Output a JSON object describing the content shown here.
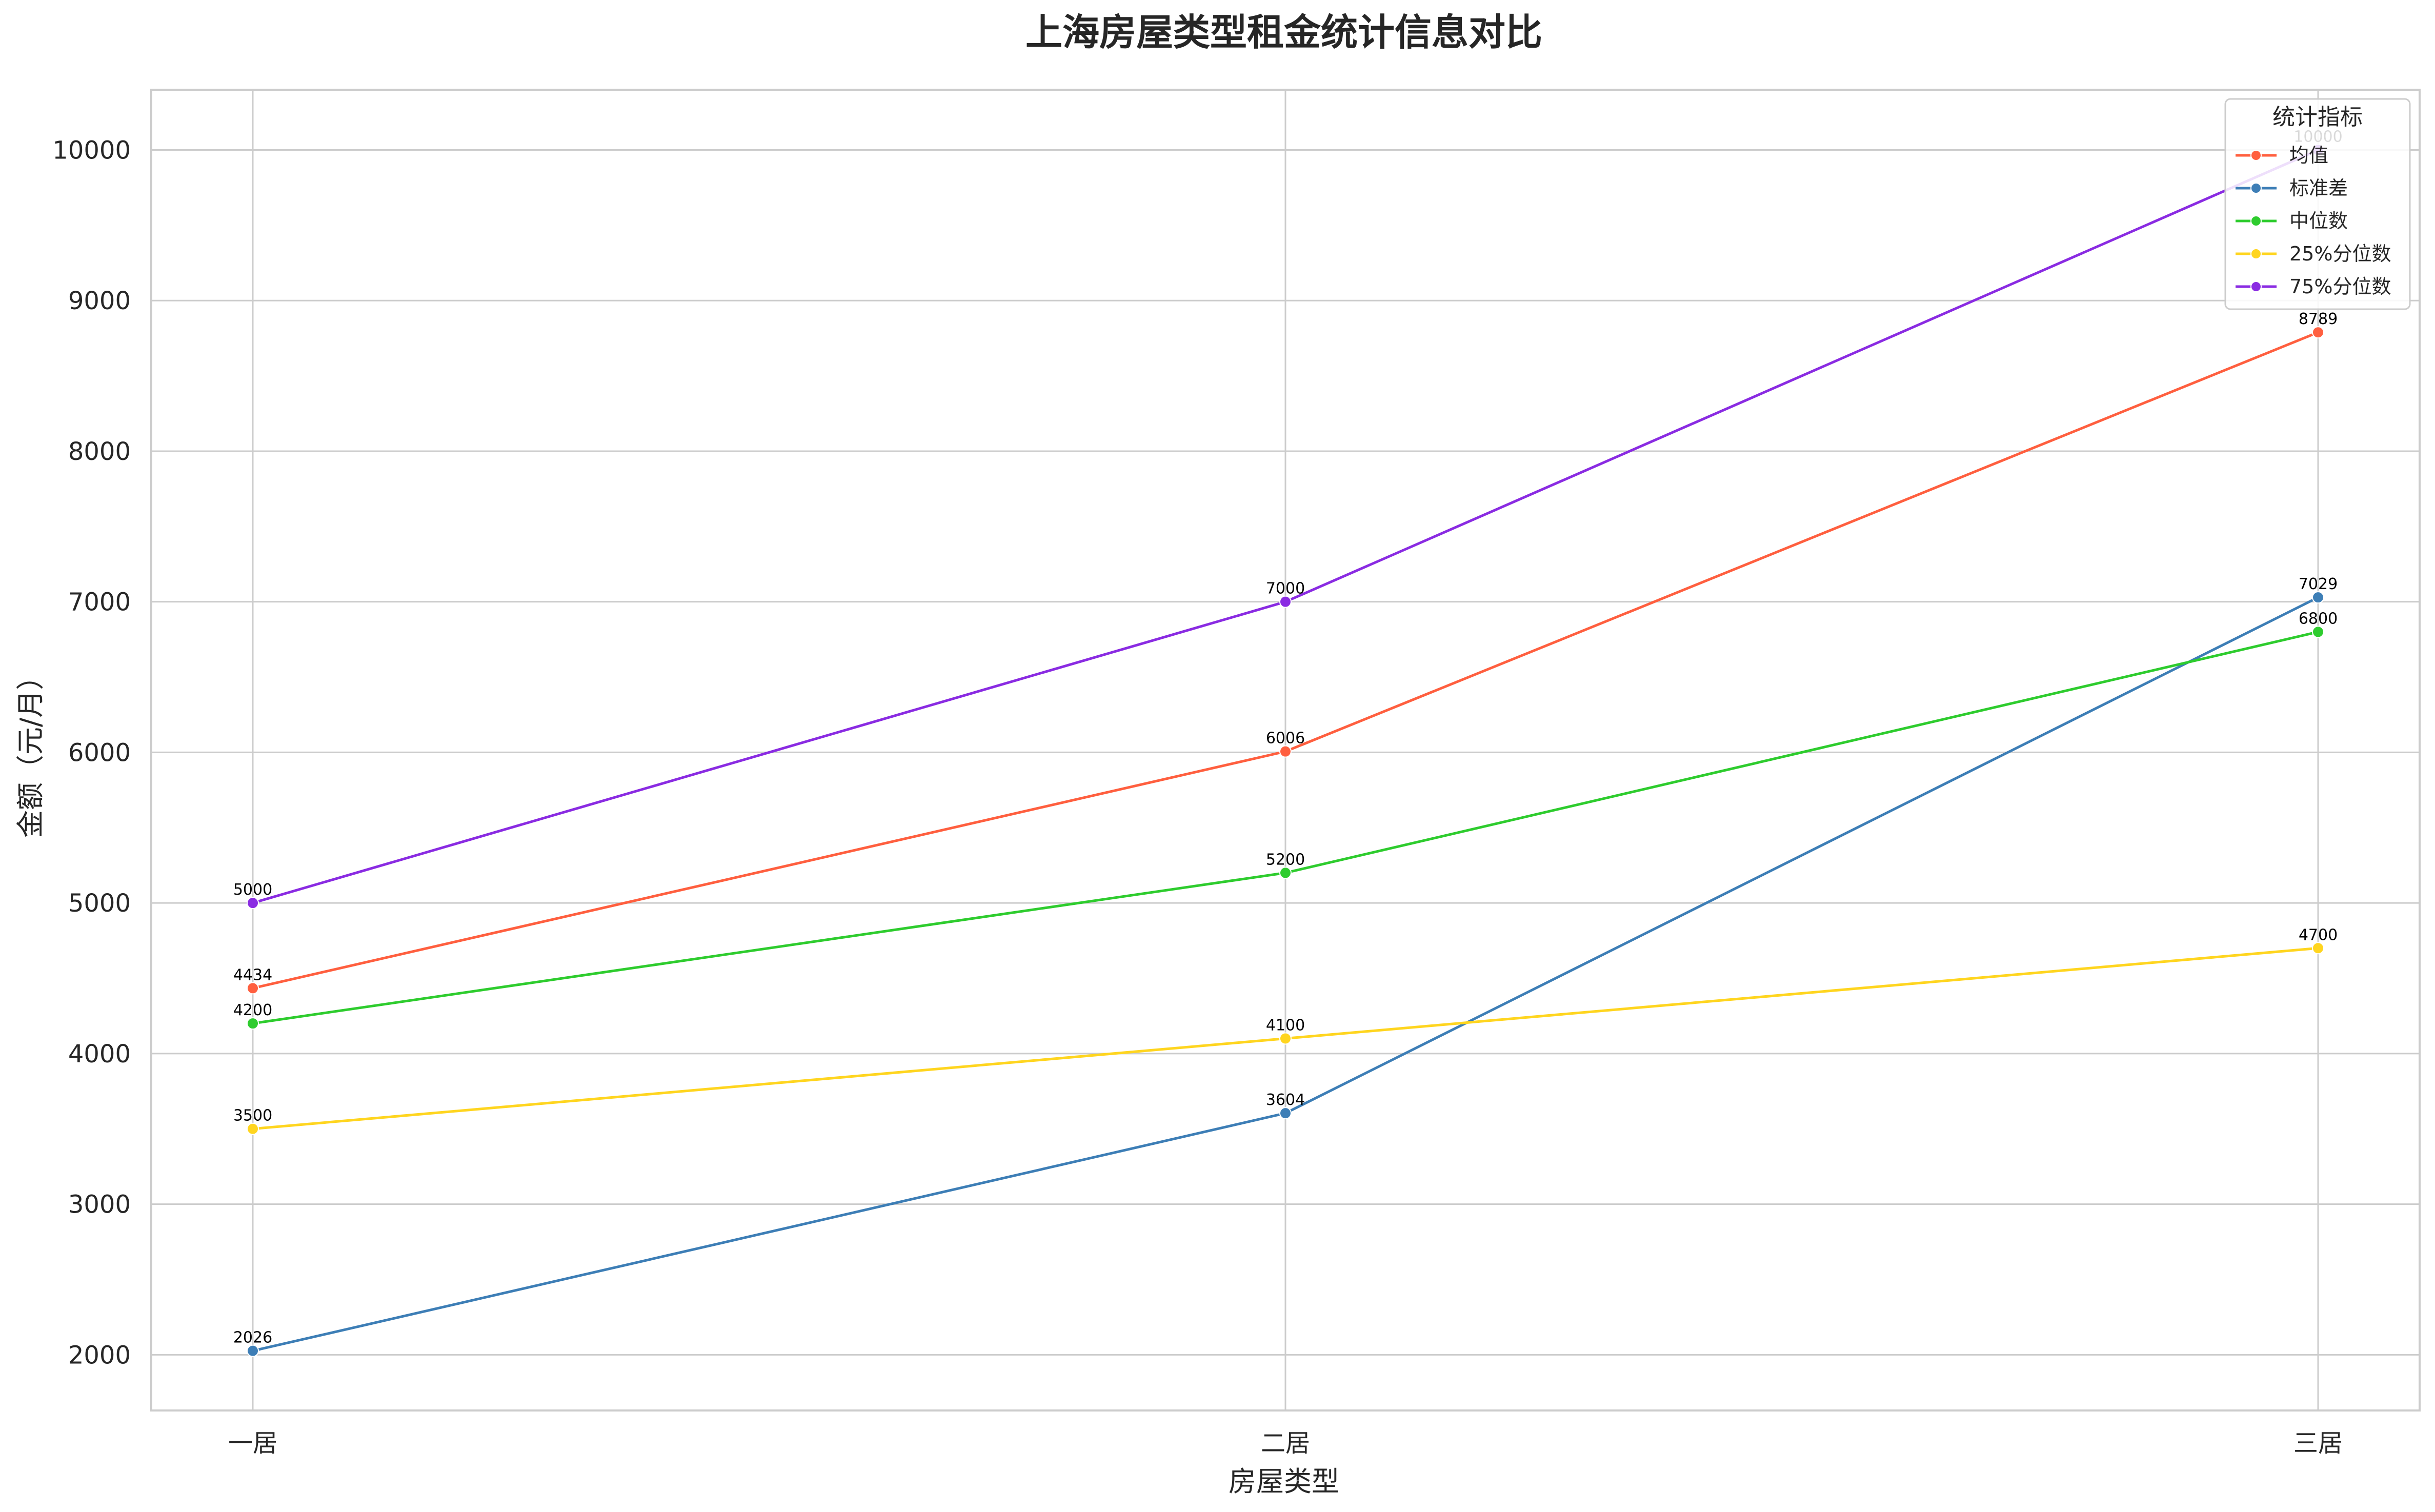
{
  "chart_data": {
    "type": "line",
    "title": "上海房屋类型租金统计信息对比",
    "xlabel": "房屋类型",
    "ylabel": "金额（元/月）",
    "categories": [
      "一居",
      "二居",
      "三居"
    ],
    "ylim": [
      1630,
      10400
    ],
    "yticks": [
      2000,
      3000,
      4000,
      5000,
      6000,
      7000,
      8000,
      9000,
      10000
    ],
    "ytick_labels": [
      "2000",
      "3000",
      "4000",
      "5000",
      "6000",
      "7000",
      "8000",
      "9000",
      "10000"
    ],
    "grid": true,
    "legend": {
      "title": "统计指标",
      "placement": "top-right"
    },
    "series": [
      {
        "name": "均值",
        "color": "#ff5f3f",
        "values": [
          4434,
          6006,
          8789
        ],
        "labels": [
          "4434",
          "6006",
          "8789"
        ]
      },
      {
        "name": "标准差",
        "color": "#3d7eb6",
        "values": [
          2026,
          3604,
          7029
        ],
        "labels": [
          "2026",
          "3604",
          "7029"
        ]
      },
      {
        "name": "中位数",
        "color": "#2ecc2e",
        "values": [
          4200,
          5200,
          6800
        ],
        "labels": [
          "4200",
          "5200",
          "6800"
        ]
      },
      {
        "name": "25%分位数",
        "color": "#ffd51f",
        "values": [
          3500,
          4100,
          4700
        ],
        "labels": [
          "3500",
          "4100",
          "4700"
        ]
      },
      {
        "name": "75%分位数",
        "color": "#8a2be2",
        "values": [
          5000,
          7000,
          10000
        ],
        "labels": [
          "5000",
          "7000",
          "10000"
        ]
      }
    ]
  }
}
